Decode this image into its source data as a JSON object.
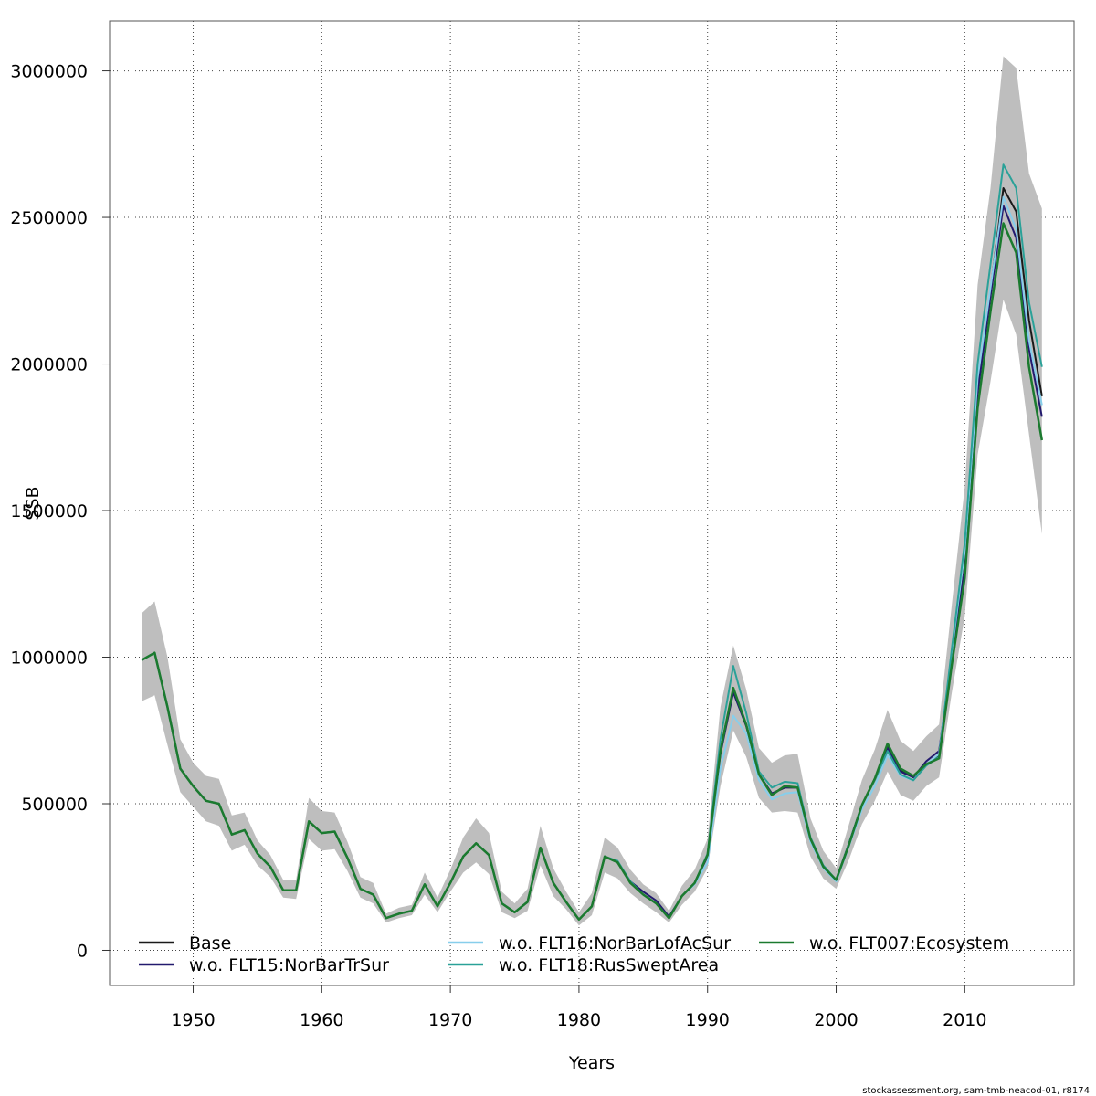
{
  "chart_data": {
    "type": "line",
    "title": "",
    "xlabel": "Years",
    "ylabel": "SSB",
    "xlim": [
      1943.5,
      2018.5
    ],
    "ylim": [
      -120000,
      3170000
    ],
    "x_ticks": [
      "1950",
      "1960",
      "1970",
      "1980",
      "1990",
      "2000",
      "2010"
    ],
    "x_tick_values": [
      1950,
      1960,
      1970,
      1980,
      1990,
      2000,
      2010
    ],
    "y_ticks": [
      "0",
      "500000",
      "1000000",
      "1500000",
      "2000000",
      "2500000",
      "3000000"
    ],
    "y_tick_values": [
      0,
      500000,
      1000000,
      1500000,
      2000000,
      2500000,
      3000000
    ],
    "grid": true,
    "legend_position": "bottom",
    "years": [
      1946,
      1947,
      1948,
      1949,
      1950,
      1951,
      1952,
      1953,
      1954,
      1955,
      1956,
      1957,
      1958,
      1959,
      1960,
      1961,
      1962,
      1963,
      1964,
      1965,
      1966,
      1967,
      1968,
      1969,
      1970,
      1971,
      1972,
      1973,
      1974,
      1975,
      1976,
      1977,
      1978,
      1979,
      1980,
      1981,
      1982,
      1983,
      1984,
      1985,
      1986,
      1987,
      1988,
      1989,
      1990,
      1991,
      1992,
      1993,
      1994,
      1995,
      1996,
      1997,
      1998,
      1999,
      2000,
      2001,
      2002,
      2003,
      2004,
      2005,
      2006,
      2007,
      2008,
      2009,
      2010,
      2011,
      2012,
      2013,
      2014,
      2015,
      2016
    ],
    "confidence_band": {
      "name": "Base 95% CI",
      "color": "#bebebe",
      "upper": [
        1150000,
        1190000,
        1000000,
        720000,
        640000,
        595000,
        585000,
        460000,
        470000,
        375000,
        325000,
        240000,
        240000,
        520000,
        475000,
        470000,
        370000,
        250000,
        230000,
        125000,
        145000,
        155000,
        265000,
        180000,
        275000,
        385000,
        450000,
        400000,
        200000,
        160000,
        210000,
        425000,
        280000,
        200000,
        130000,
        195000,
        385000,
        350000,
        275000,
        225000,
        195000,
        135000,
        220000,
        275000,
        380000,
        830000,
        1040000,
        890000,
        690000,
        640000,
        665000,
        670000,
        450000,
        340000,
        280000,
        430000,
        580000,
        685000,
        820000,
        715000,
        680000,
        730000,
        770000,
        1180000,
        1580000,
        2270000,
        2600000,
        3050000,
        3010000,
        2650000,
        2530000
      ],
      "lower": [
        850000,
        870000,
        700000,
        540000,
        490000,
        440000,
        425000,
        340000,
        360000,
        290000,
        250000,
        180000,
        175000,
        380000,
        340000,
        345000,
        270000,
        180000,
        160000,
        95000,
        110000,
        120000,
        190000,
        130000,
        200000,
        265000,
        300000,
        260000,
        130000,
        110000,
        135000,
        290000,
        185000,
        140000,
        85000,
        120000,
        265000,
        245000,
        195000,
        160000,
        130000,
        95000,
        155000,
        200000,
        280000,
        560000,
        750000,
        660000,
        520000,
        470000,
        475000,
        470000,
        320000,
        245000,
        210000,
        310000,
        430000,
        510000,
        610000,
        530000,
        510000,
        560000,
        590000,
        880000,
        1140000,
        1690000,
        1940000,
        2220000,
        2100000,
        1760000,
        1420000
      ]
    },
    "series": [
      {
        "name": "Base",
        "color": "#1a1a1a",
        "values": [
          990000,
          1015000,
          830000,
          620000,
          560000,
          510000,
          500000,
          395000,
          410000,
          330000,
          285000,
          205000,
          205000,
          440000,
          400000,
          405000,
          315000,
          210000,
          190000,
          110000,
          125000,
          135000,
          225000,
          150000,
          230000,
          320000,
          365000,
          325000,
          160000,
          130000,
          165000,
          350000,
          230000,
          165000,
          105000,
          150000,
          320000,
          300000,
          230000,
          190000,
          160000,
          110000,
          185000,
          230000,
          325000,
          685000,
          890000,
          770000,
          600000,
          535000,
          555000,
          555000,
          380000,
          285000,
          240000,
          365000,
          495000,
          585000,
          700000,
          615000,
          590000,
          635000,
          665000,
          1010000,
          1350000,
          1940000,
          2250000,
          2600000,
          2520000,
          2150000,
          1890000
        ]
      },
      {
        "name": "w.o. FLT15:NorBarTrSur",
        "color": "#231a6e",
        "values": [
          990000,
          1015000,
          830000,
          620000,
          560000,
          510000,
          500000,
          395000,
          410000,
          330000,
          285000,
          205000,
          205000,
          440000,
          400000,
          405000,
          315000,
          210000,
          190000,
          110000,
          125000,
          135000,
          225000,
          150000,
          230000,
          320000,
          365000,
          325000,
          160000,
          130000,
          165000,
          350000,
          230000,
          165000,
          105000,
          150000,
          320000,
          300000,
          235000,
          200000,
          170000,
          115000,
          185000,
          230000,
          320000,
          670000,
          880000,
          765000,
          600000,
          535000,
          555000,
          555000,
          380000,
          285000,
          240000,
          365000,
          495000,
          585000,
          690000,
          610000,
          590000,
          645000,
          680000,
          1000000,
          1300000,
          1900000,
          2230000,
          2540000,
          2430000,
          2050000,
          1820000
        ]
      },
      {
        "name": "w.o. FLT16:NorBarLofAcSur",
        "color": "#87ceeb",
        "values": [
          990000,
          1015000,
          830000,
          620000,
          560000,
          510000,
          500000,
          395000,
          410000,
          330000,
          285000,
          205000,
          205000,
          440000,
          400000,
          405000,
          315000,
          210000,
          190000,
          110000,
          125000,
          135000,
          225000,
          150000,
          230000,
          320000,
          365000,
          325000,
          160000,
          130000,
          165000,
          350000,
          230000,
          165000,
          105000,
          150000,
          320000,
          300000,
          230000,
          190000,
          160000,
          110000,
          185000,
          225000,
          300000,
          620000,
          800000,
          740000,
          580000,
          515000,
          535000,
          540000,
          370000,
          280000,
          235000,
          355000,
          480000,
          560000,
          665000,
          595000,
          580000,
          635000,
          670000,
          1020000,
          1360000,
          1950000,
          2260000,
          2570000,
          2460000,
          2080000,
          1860000
        ]
      },
      {
        "name": "w.o. FLT18:RusSweptArea",
        "color": "#2aa198",
        "values": [
          990000,
          1015000,
          830000,
          620000,
          560000,
          510000,
          500000,
          395000,
          410000,
          330000,
          285000,
          205000,
          205000,
          440000,
          400000,
          405000,
          315000,
          210000,
          190000,
          110000,
          125000,
          135000,
          225000,
          150000,
          230000,
          320000,
          365000,
          325000,
          160000,
          130000,
          165000,
          350000,
          230000,
          165000,
          105000,
          150000,
          320000,
          305000,
          235000,
          190000,
          160000,
          110000,
          185000,
          230000,
          330000,
          720000,
          970000,
          810000,
          610000,
          555000,
          575000,
          570000,
          385000,
          290000,
          240000,
          365000,
          495000,
          580000,
          680000,
          600000,
          580000,
          630000,
          660000,
          1030000,
          1390000,
          2000000,
          2340000,
          2680000,
          2600000,
          2210000,
          1990000
        ]
      },
      {
        "name": "w.o. FLT007:Ecosystem",
        "color": "#1b7a2f",
        "values": [
          990000,
          1015000,
          830000,
          620000,
          560000,
          510000,
          500000,
          395000,
          410000,
          330000,
          285000,
          205000,
          205000,
          440000,
          400000,
          405000,
          315000,
          210000,
          190000,
          110000,
          125000,
          135000,
          225000,
          150000,
          230000,
          320000,
          365000,
          325000,
          160000,
          130000,
          165000,
          350000,
          230000,
          165000,
          105000,
          150000,
          320000,
          300000,
          230000,
          190000,
          160000,
          110000,
          185000,
          230000,
          325000,
          680000,
          895000,
          770000,
          600000,
          530000,
          560000,
          555000,
          380000,
          285000,
          240000,
          360000,
          495000,
          585000,
          705000,
          620000,
          595000,
          635000,
          655000,
          975000,
          1270000,
          1850000,
          2180000,
          2480000,
          2380000,
          1990000,
          1740000
        ]
      }
    ],
    "legend": [
      {
        "label": "Base",
        "color": "#1a1a1a"
      },
      {
        "label": "w.o. FLT15:NorBarTrSur",
        "color": "#231a6e"
      },
      {
        "label": "w.o. FLT16:NorBarLofAcSur",
        "color": "#87ceeb"
      },
      {
        "label": "w.o. FLT18:RusSweptArea",
        "color": "#2aa198"
      },
      {
        "label": "w.o. FLT007:Ecosystem",
        "color": "#1b7a2f"
      }
    ]
  },
  "footer": "stockassessment.org, sam-tmb-neacod-01, r8174"
}
